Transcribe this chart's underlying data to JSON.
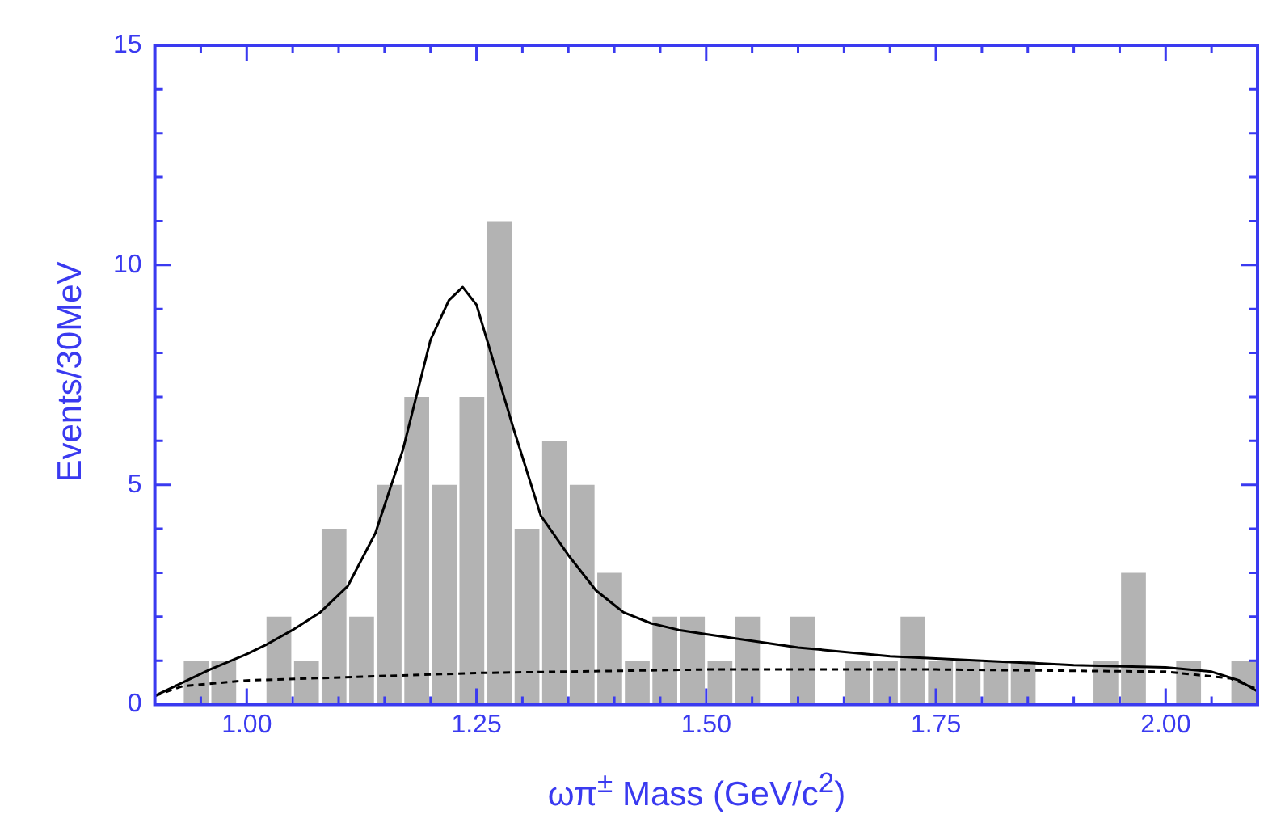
{
  "chart_data": {
    "type": "histogram",
    "xlabel": "ωπ$^{±}$ Mass (GeV/c$^{2}$)",
    "ylabel": "Events/30MeV",
    "color": "#b3b3b3",
    "bins": [
      0.9,
      0.93,
      0.96,
      0.99,
      1.02,
      1.05,
      1.08,
      1.11,
      1.14,
      1.17,
      1.2,
      1.23,
      1.26,
      1.29,
      1.32,
      1.35,
      1.38,
      1.41,
      1.44,
      1.47,
      1.5,
      1.53,
      1.56,
      1.59,
      1.62,
      1.65,
      1.68,
      1.71,
      1.74,
      1.77,
      1.8,
      1.83,
      1.86,
      1.89,
      1.92,
      1.95,
      1.98,
      2.01,
      2.04,
      2.07,
      2.1
    ],
    "values": [
      0,
      1,
      1,
      0,
      2,
      1,
      4,
      2,
      5,
      7,
      5,
      7,
      11,
      4,
      6,
      5,
      3,
      1,
      2,
      2,
      1,
      2,
      0,
      2,
      0,
      1,
      1,
      2,
      1,
      1,
      1,
      1,
      0,
      0,
      1,
      3,
      0,
      1,
      0,
      1
    ],
    "series": [
      {
        "type": "line",
        "color": "#000000",
        "line_style": "solid",
        "x": [
          0.9,
          0.93,
          0.96,
          1.0,
          1.02,
          1.05,
          1.08,
          1.11,
          1.14,
          1.17,
          1.2,
          1.22,
          1.235,
          1.25,
          1.26,
          1.29,
          1.32,
          1.35,
          1.38,
          1.41,
          1.44,
          1.47,
          1.5,
          1.6,
          1.7,
          1.8,
          1.9,
          2.0,
          2.05,
          2.08,
          2.1
        ],
        "values": [
          0.2,
          0.5,
          0.8,
          1.15,
          1.35,
          1.7,
          2.1,
          2.7,
          3.9,
          5.8,
          8.3,
          9.2,
          9.5,
          9.1,
          8.4,
          6.3,
          4.3,
          3.4,
          2.6,
          2.1,
          1.85,
          1.7,
          1.6,
          1.3,
          1.1,
          1.0,
          0.9,
          0.85,
          0.75,
          0.55,
          0.3
        ]
      },
      {
        "type": "line",
        "color": "#000000",
        "line_style": "dashed",
        "x": [
          0.9,
          0.93,
          1.0,
          1.25,
          1.5,
          1.75,
          2.0,
          2.07,
          2.1
        ],
        "values": [
          0.2,
          0.42,
          0.55,
          0.72,
          0.8,
          0.8,
          0.75,
          0.6,
          0.35
        ]
      }
    ],
    "marker": "none",
    "xlim": [
      0.9,
      2.1
    ],
    "xticks": [
      {
        "value": 0.95,
        "label": null
      },
      {
        "value": 1.0,
        "label": "1.00"
      },
      {
        "value": 1.05,
        "label": null
      },
      {
        "value": 1.1,
        "label": null
      },
      {
        "value": 1.15,
        "label": null
      },
      {
        "value": 1.2,
        "label": null
      },
      {
        "value": 1.25,
        "label": "1.25"
      },
      {
        "value": 1.3,
        "label": null
      },
      {
        "value": 1.35,
        "label": null
      },
      {
        "value": 1.4,
        "label": null
      },
      {
        "value": 1.45,
        "label": null
      },
      {
        "value": 1.5,
        "label": "1.50"
      },
      {
        "value": 1.55,
        "label": null
      },
      {
        "value": 1.6,
        "label": null
      },
      {
        "value": 1.65,
        "label": null
      },
      {
        "value": 1.7,
        "label": null
      },
      {
        "value": 1.75,
        "label": "1.75"
      },
      {
        "value": 1.8,
        "label": null
      },
      {
        "value": 1.85,
        "label": null
      },
      {
        "value": 1.9,
        "label": null
      },
      {
        "value": 1.95,
        "label": null
      },
      {
        "value": 2.0,
        "label": "2.00"
      },
      {
        "value": 2.05,
        "label": null
      }
    ],
    "ylim": [
      0,
      15
    ],
    "yticks": [
      0,
      {
        "value": 1,
        "label": null
      },
      {
        "value": 2,
        "label": null
      },
      {
        "value": 3,
        "label": null
      },
      {
        "value": 4,
        "label": null
      },
      5,
      {
        "value": 6,
        "label": null
      },
      {
        "value": 7,
        "label": null
      },
      {
        "value": 8,
        "label": null
      },
      {
        "value": 9,
        "label": null
      },
      10,
      {
        "value": 11,
        "label": null
      },
      {
        "value": 12,
        "label": null
      },
      {
        "value": 13,
        "label": null
      },
      {
        "value": 14,
        "label": null
      },
      15
    ],
    "grid": false,
    "legend": false
  }
}
